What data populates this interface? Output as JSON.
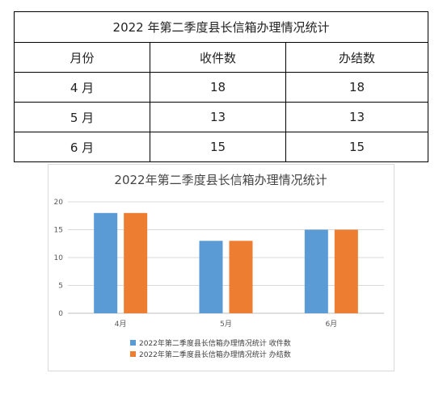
{
  "table": {
    "title": "2022 年第二季度县长信箱办理情况统计",
    "headers": [
      "月份",
      "收件数",
      "办结数"
    ],
    "rows": [
      [
        "4 月",
        "18",
        "18"
      ],
      [
        "5 月",
        "13",
        "13"
      ],
      [
        "6 月",
        "15",
        "15"
      ]
    ]
  },
  "chart_data": {
    "type": "bar",
    "title": "2022年第二季度县长信箱办理情况统计",
    "categories": [
      "4月",
      "5月",
      "6月"
    ],
    "series": [
      {
        "name": "2022年第二季度县长信箱办理情况统计 收件数",
        "values": [
          18,
          13,
          15
        ],
        "color": "#5b9bd5"
      },
      {
        "name": "2022年第二季度县长信箱办理情况统计 办结数",
        "values": [
          18,
          13,
          15
        ],
        "color": "#ed7d31"
      }
    ],
    "yticks": [
      "0",
      "5",
      "10",
      "15",
      "20"
    ],
    "ylim": [
      0,
      20
    ],
    "grid": true,
    "legend": "bottom"
  }
}
